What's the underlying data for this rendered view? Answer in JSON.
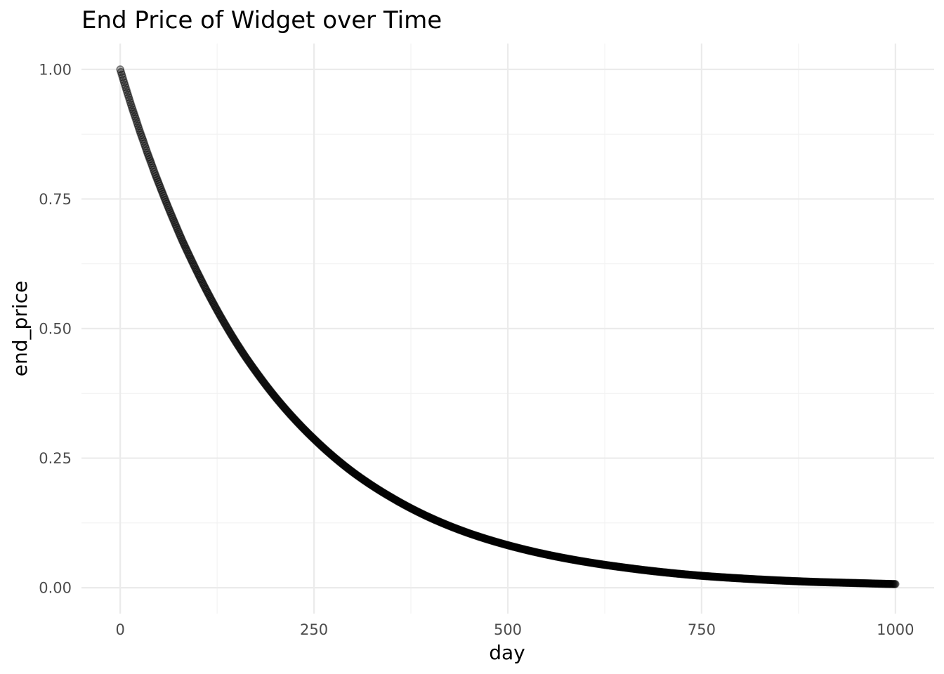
{
  "chart_data": {
    "type": "scatter",
    "title": "End Price of Widget over Time",
    "xlabel": "day",
    "ylabel": "end_price",
    "xlim": [
      -50,
      1050
    ],
    "ylim": [
      -0.05,
      1.05
    ],
    "x_ticks": [
      0,
      250,
      500,
      750,
      1000
    ],
    "x_tick_labels": [
      "0",
      "250",
      "500",
      "750",
      "1000"
    ],
    "y_ticks": [
      0,
      0.25,
      0.5,
      0.75,
      1.0
    ],
    "y_tick_labels": [
      "0.00",
      "0.25",
      "0.50",
      "0.75",
      "1.00"
    ],
    "grid": true,
    "legend": "none",
    "point_color": "#000000",
    "x": [
      0,
      5,
      10,
      15,
      20,
      25,
      30,
      35,
      40,
      45,
      50,
      60,
      70,
      80,
      90,
      100,
      115,
      130,
      145,
      160,
      175,
      200,
      225,
      250,
      275,
      300,
      350,
      400,
      450,
      500,
      550,
      600,
      650,
      700,
      750,
      800,
      850,
      900,
      950,
      1000
    ],
    "values": [
      1.0,
      0.975,
      0.951,
      0.927,
      0.905,
      0.882,
      0.861,
      0.839,
      0.819,
      0.798,
      0.779,
      0.741,
      0.705,
      0.67,
      0.638,
      0.607,
      0.563,
      0.522,
      0.484,
      0.449,
      0.417,
      0.368,
      0.325,
      0.287,
      0.253,
      0.223,
      0.174,
      0.135,
      0.105,
      0.082,
      0.064,
      0.05,
      0.039,
      0.03,
      0.023,
      0.018,
      0.014,
      0.011,
      0.009,
      0.007
    ]
  }
}
